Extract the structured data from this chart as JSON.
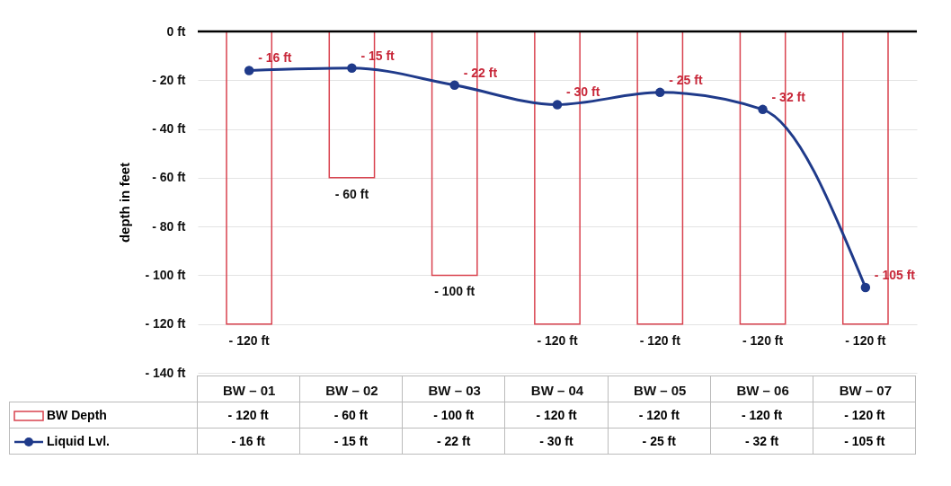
{
  "chart_data": {
    "type": "bar",
    "ylabel": "depth in feet",
    "categories": [
      "BW – 01",
      "BW – 02",
      "BW – 03",
      "BW – 04",
      "BW – 05",
      "BW – 06",
      "BW – 07"
    ],
    "series": [
      {
        "name": "BW Depth",
        "color": "#d9434f",
        "values": [
          -120,
          -60,
          -100,
          -120,
          -120,
          -120,
          -120
        ],
        "value_labels": [
          "- 120 ft",
          "- 60 ft",
          "- 100 ft",
          "- 120 ft",
          "- 120 ft",
          "- 120 ft",
          "- 120 ft"
        ]
      },
      {
        "name": "Liquid Lvl.",
        "type": "line",
        "color": "#1f3a8a",
        "values": [
          -16,
          -15,
          -22,
          -30,
          -25,
          -32,
          -105
        ],
        "value_labels": [
          "- 16 ft",
          "- 15 ft",
          "- 22 ft",
          "- 30 ft",
          "- 25 ft",
          "- 32 ft",
          "- 105 ft"
        ]
      }
    ],
    "ylim": [
      -140,
      0
    ],
    "yticks": [
      {
        "value": 0,
        "label": "0 ft"
      },
      {
        "value": -20,
        "label": "- 20 ft"
      },
      {
        "value": -40,
        "label": "- 40 ft"
      },
      {
        "value": -60,
        "label": "- 60 ft"
      },
      {
        "value": -80,
        "label": "- 80 ft"
      },
      {
        "value": -100,
        "label": "- 100 ft"
      },
      {
        "value": -120,
        "label": "- 120 ft"
      },
      {
        "value": -140,
        "label": "- 140 ft"
      }
    ],
    "grid": "y",
    "legend": "bottom left",
    "marker": "circle",
    "line_style": "solid"
  }
}
